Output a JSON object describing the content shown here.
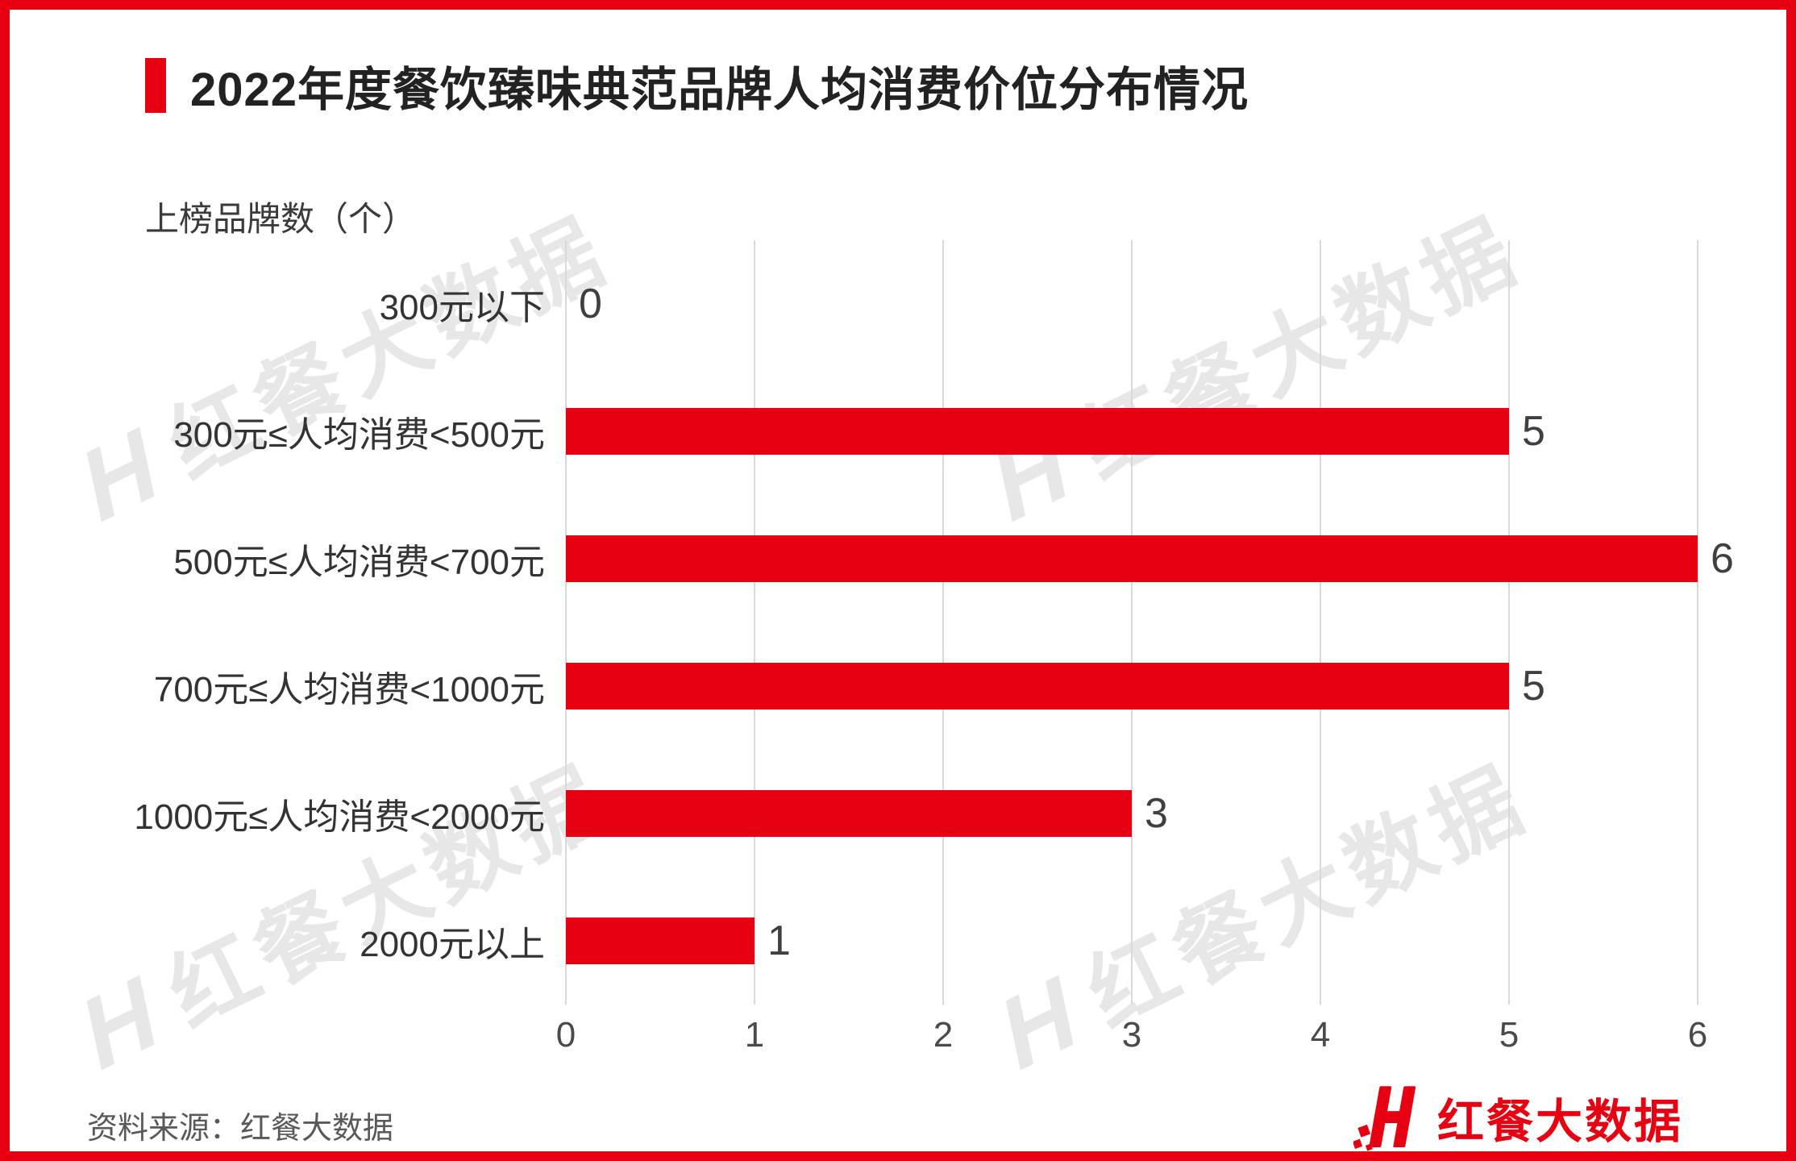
{
  "page": {
    "title": "2022年度餐饮臻味典范品牌人均消费价位分布情况",
    "source": "资料来源：红餐大数据",
    "logo_text": "红餐大数据",
    "watermark_h": "H",
    "watermark_text": "红餐大数据",
    "accent_color": "#e60012"
  },
  "chart_data": {
    "type": "bar",
    "orientation": "horizontal",
    "title": "2022年度餐饮臻味典范品牌人均消费价位分布情况",
    "xlabel": "",
    "ylabel": "上榜品牌数（个）",
    "axis_title": "上榜品牌数（个）",
    "categories": [
      "300元以下",
      "300元≤人均消费<500元",
      "500元≤人均消费<700元",
      "700元≤人均消费<1000元",
      "1000元≤人均消费<2000元",
      "2000元以上"
    ],
    "values": [
      0,
      5,
      6,
      5,
      3,
      1
    ],
    "xlim": [
      0,
      6
    ],
    "x_ticks": [
      0,
      1,
      2,
      3,
      4,
      5,
      6
    ],
    "bar_color": "#e60012",
    "grid": true,
    "legend_position": "none"
  }
}
